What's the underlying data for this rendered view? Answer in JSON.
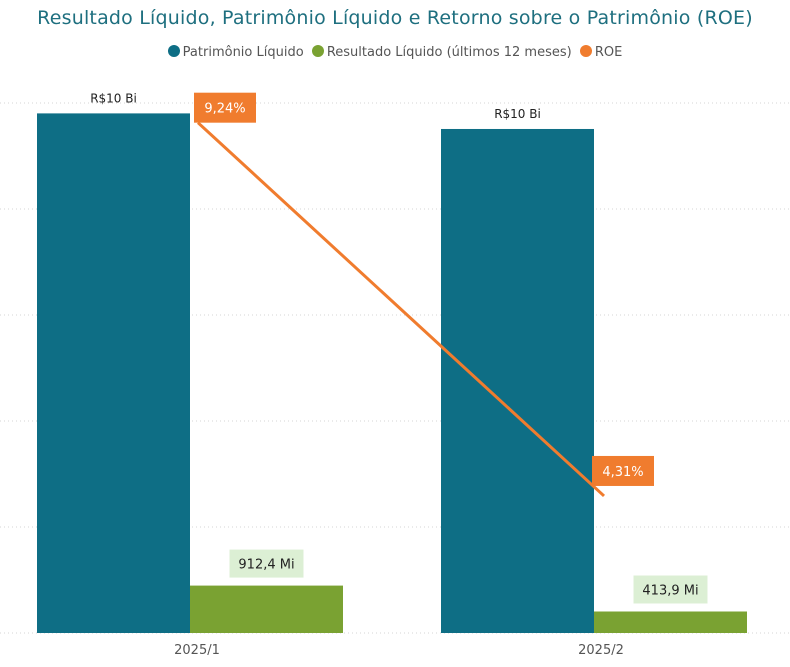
{
  "chart_data": {
    "type": "bar",
    "title": "Resultado Líquido, Patrimônio Líquido e Retorno sobre o Patrimônio (ROE)",
    "categories": [
      "2025/1",
      "2025/2"
    ],
    "series": [
      {
        "name": "Patrimônio Líquido",
        "type": "bar",
        "color": "#0e6e85",
        "values": [
          10.0,
          9.7
        ],
        "labels": [
          "R$10 Bi",
          "R$10 Bi"
        ]
      },
      {
        "name": "Resultado Líquido (últimos 12 meses)",
        "type": "bar",
        "color": "#7aa232",
        "values": [
          0.9124,
          0.4139
        ],
        "labels": [
          "912,4 Mi",
          "413,9 Mi"
        ]
      },
      {
        "name": "ROE",
        "type": "line",
        "axis": "secondary",
        "color": "#f07c2e",
        "values": [
          9.24,
          4.31
        ],
        "labels": [
          "9,24%",
          "4,31%"
        ]
      }
    ],
    "ylim": [
      0,
      10.2
    ],
    "y2lim": [
      2.5,
      9.5
    ],
    "grid": true,
    "legend_position": "top-center"
  }
}
